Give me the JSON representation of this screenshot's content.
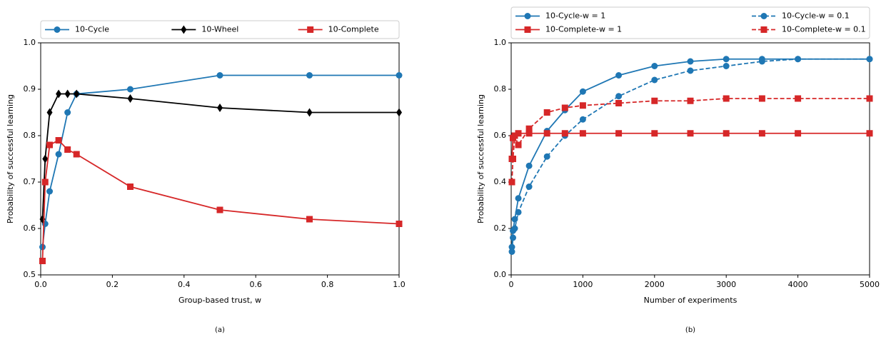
{
  "chart_data": [
    {
      "type": "line",
      "caption": "(a)",
      "xlabel": "Group-based trust, w",
      "ylabel": "Probability of successful learning",
      "x": [
        0.005,
        0.0125,
        0.025,
        0.05,
        0.075,
        0.1,
        0.25,
        0.5,
        0.75,
        1.0
      ],
      "xlim": [
        0,
        1.0
      ],
      "ylim": [
        0.5,
        1.0
      ],
      "xticks": [
        {
          "value": 0,
          "label": "0.0"
        },
        0.2,
        0.4,
        0.6,
        0.8,
        {
          "value": 1,
          "label": "1.0"
        }
      ],
      "yticks": [
        0.5,
        0.6,
        0.7,
        0.8,
        0.9,
        {
          "value": 1,
          "label": "1.0"
        }
      ],
      "legend": "above",
      "legend_columns": 3,
      "series": [
        {
          "name": "10-Cycle",
          "color": "#1f77b4",
          "marker": "circle",
          "dashed": false,
          "values": [
            0.56,
            0.61,
            0.68,
            0.76,
            0.85,
            0.89,
            0.9,
            0.93,
            0.93,
            0.93
          ]
        },
        {
          "name": "10-Wheel",
          "color": "#000000",
          "marker": "diamond",
          "dashed": false,
          "values": [
            0.62,
            0.75,
            0.85,
            0.89,
            0.89,
            0.89,
            0.88,
            0.86,
            0.85,
            0.85
          ]
        },
        {
          "name": "10-Complete",
          "color": "#d62728",
          "marker": "square",
          "dashed": false,
          "values": [
            0.53,
            0.7,
            0.78,
            0.79,
            0.77,
            0.76,
            0.69,
            0.64,
            0.62,
            0.61
          ]
        }
      ]
    },
    {
      "type": "line",
      "caption": "(b)",
      "xlabel": "Number of experiments",
      "ylabel": "Probability of successful learning",
      "x": [
        10,
        25,
        50,
        100,
        250,
        500,
        750,
        1000,
        1500,
        2000,
        2500,
        3000,
        3500,
        4000,
        5000
      ],
      "xlim": [
        0,
        5000
      ],
      "ylim": [
        0,
        1.0
      ],
      "xticks": [
        0,
        1000,
        2000,
        3000,
        4000,
        5000
      ],
      "yticks": [
        {
          "value": 0,
          "label": "0.0"
        },
        0.2,
        0.4,
        0.6,
        0.8,
        {
          "value": 1,
          "label": "1.0"
        }
      ],
      "legend": "above",
      "legend_columns": 2,
      "series": [
        {
          "name": "10-Cycle-w = 1",
          "color": "#1f77b4",
          "marker": "circle",
          "dashed": false,
          "values": [
            0.12,
            0.19,
            0.24,
            0.33,
            0.47,
            0.62,
            0.71,
            0.79,
            0.86,
            0.9,
            0.92,
            0.93,
            0.93,
            0.93,
            0.93
          ]
        },
        {
          "name": "10-Cycle-w = 0.1",
          "color": "#1f77b4",
          "marker": "circle",
          "dashed": true,
          "values": [
            0.1,
            0.16,
            0.2,
            0.27,
            0.38,
            0.51,
            0.6,
            0.67,
            0.77,
            0.84,
            0.88,
            0.9,
            0.92,
            0.93,
            0.93
          ]
        },
        {
          "name": "10-Complete-w = 1",
          "color": "#d62728",
          "marker": "square",
          "dashed": false,
          "values": [
            0.5,
            0.59,
            0.6,
            0.61,
            0.61,
            0.61,
            0.61,
            0.61,
            0.61,
            0.61,
            0.61,
            0.61,
            0.61,
            0.61,
            0.61
          ]
        },
        {
          "name": "10-Complete-w = 0.1",
          "color": "#d62728",
          "marker": "square",
          "dashed": true,
          "values": [
            0.4,
            0.5,
            0.6,
            0.56,
            0.63,
            0.7,
            0.72,
            0.73,
            0.74,
            0.75,
            0.75,
            0.76,
            0.76,
            0.76,
            0.76
          ]
        }
      ]
    }
  ]
}
